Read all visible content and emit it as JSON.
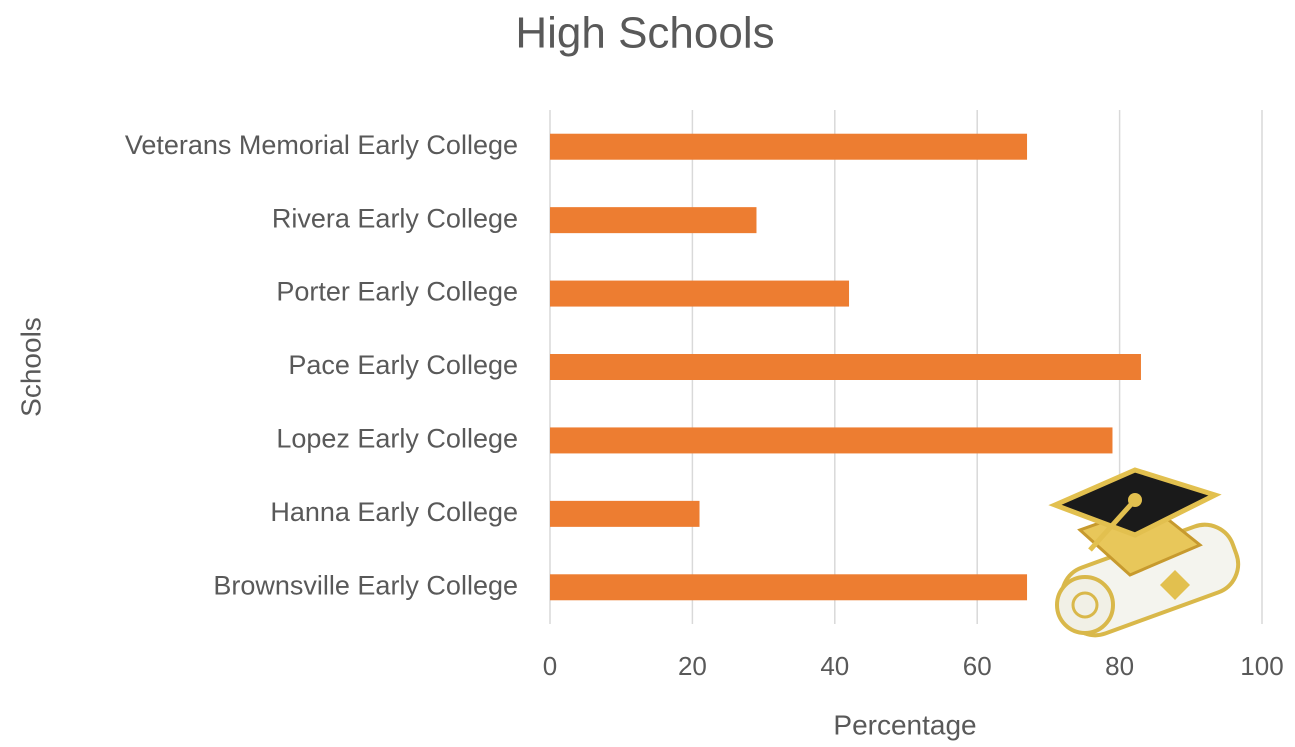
{
  "chart_data": {
    "type": "bar",
    "orientation": "horizontal",
    "title": "High Schools",
    "x_label": "Percentage",
    "y_label": "Schools",
    "categories": [
      "Veterans Memorial Early College",
      "Rivera Early College",
      "Porter Early College",
      "Pace Early College",
      "Lopez Early College",
      "Hanna Early College",
      "Brownsville Early College"
    ],
    "values": [
      67,
      29,
      42,
      83,
      79,
      21,
      67
    ],
    "color": "#ed7d31",
    "xlim": [
      0,
      100
    ],
    "xticks": [
      0,
      20,
      40,
      60,
      80,
      100
    ],
    "grid": true
  }
}
